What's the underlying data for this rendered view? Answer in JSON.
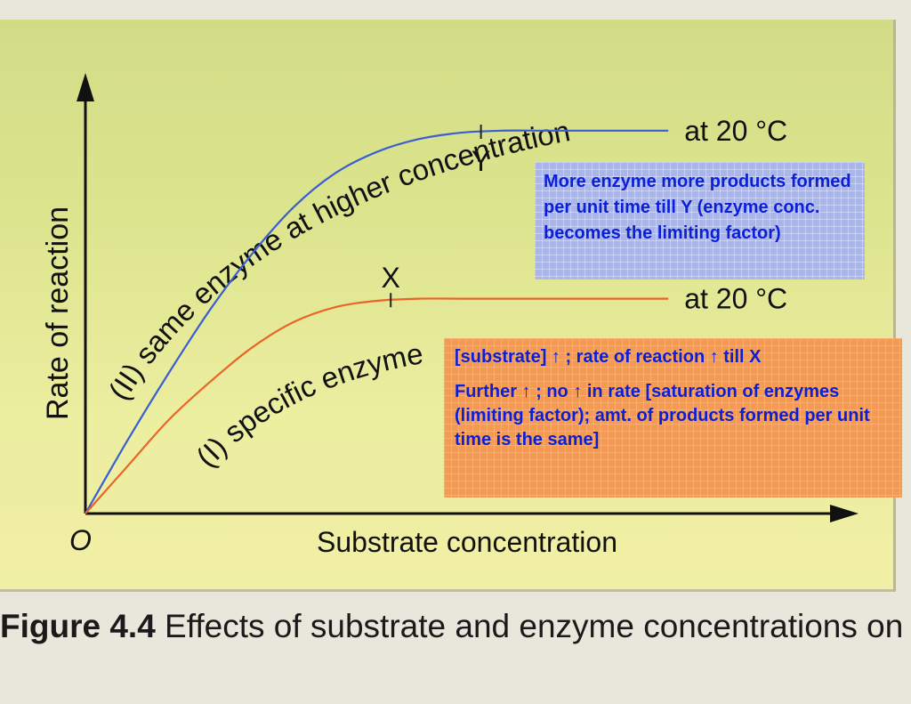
{
  "chart_data": {
    "type": "line",
    "xlabel": "Substrate concentration",
    "ylabel": "Rate of reaction",
    "origin_label": "O",
    "xlim": [
      0,
      10
    ],
    "ylim": [
      0,
      10
    ],
    "series": [
      {
        "name": "(II) same enzyme at higher concentration",
        "end_label": "at 20 °C",
        "marker_label": "Y",
        "color": "#3a5fd0",
        "x": [
          0,
          0.6,
          1.2,
          1.8,
          2.4,
          3.0,
          3.6,
          4.2,
          4.8,
          5.4,
          6.0,
          6.6,
          7.2,
          7.8,
          8.4
        ],
        "y": [
          0,
          1.7,
          3.3,
          4.8,
          6.1,
          7.2,
          8.0,
          8.5,
          8.8,
          8.95,
          9.0,
          9.0,
          9.0,
          9.0,
          9.0
        ],
        "marker_x": 5.7
      },
      {
        "name": "(I) specific enzyme",
        "end_label": "at 20 °C",
        "marker_label": "X",
        "color": "#e8652a",
        "x": [
          0,
          0.6,
          1.2,
          1.8,
          2.4,
          3.0,
          3.6,
          4.2,
          4.8,
          5.4,
          6.0,
          6.6,
          7.2,
          7.8,
          8.4
        ],
        "y": [
          0,
          1.1,
          2.2,
          3.1,
          3.9,
          4.5,
          4.85,
          5.0,
          5.05,
          5.05,
          5.05,
          5.05,
          5.05,
          5.05,
          5.05
        ],
        "marker_x": 4.4
      }
    ]
  },
  "annotations": {
    "note_y": "More enzyme more products formed per unit time till Y (enzyme conc. becomes the limiting factor)",
    "note_x_line1": "[substrate] ↑ ; rate of reaction ↑ till X",
    "note_x_line2": "Further ↑ ; no ↑ in rate [saturation of enzymes (limiting factor); amt. of products formed per unit time is the same]"
  },
  "caption": {
    "label": "Figure 4.4",
    "text": " Effects of substrate and enzyme concentrations on the rate of reaction"
  },
  "colors": {
    "panel": "#dde48e",
    "note_y_bg": "#aab6ea",
    "note_x_bg": "#f59a52",
    "note_text": "#0a1fd6"
  }
}
